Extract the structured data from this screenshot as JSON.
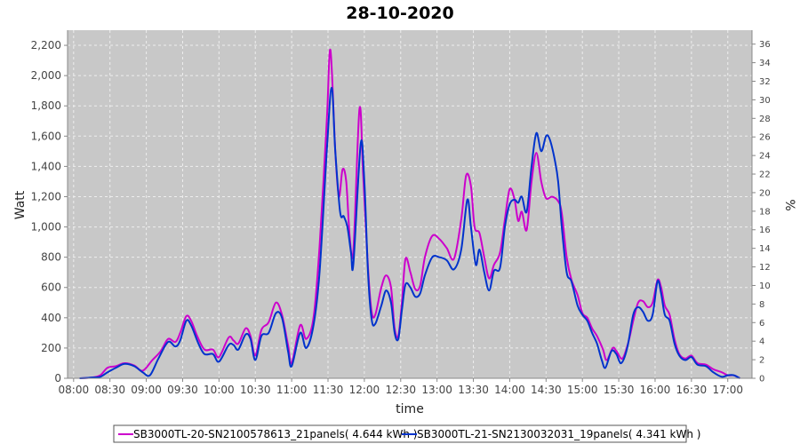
{
  "chart_data": {
    "type": "line",
    "title": "28-10-2020",
    "xlabel": "time",
    "ylabel": "Watt",
    "y2label": "%",
    "ylim": [
      0,
      2300
    ],
    "y2lim": [
      0,
      37.5
    ],
    "xlim": [
      "07:55",
      "17:20"
    ],
    "grid": true,
    "legend_position": "bottom",
    "x_ticks": [
      "08:00",
      "08:30",
      "09:00",
      "09:30",
      "10:00",
      "10:30",
      "11:00",
      "11:30",
      "12:00",
      "12:30",
      "13:00",
      "13:30",
      "14:00",
      "14:30",
      "15:00",
      "15:30",
      "16:00",
      "16:30",
      "17:00"
    ],
    "y_ticks": [
      "0",
      "200",
      "400",
      "600",
      "800",
      "1,000",
      "1,200",
      "1,400",
      "1,600",
      "1,800",
      "2,000",
      "2,200"
    ],
    "y_tick_values": [
      0,
      200,
      400,
      600,
      800,
      1000,
      1200,
      1400,
      1600,
      1800,
      2000,
      2200
    ],
    "y2_ticks": [
      "0",
      "2",
      "4",
      "6",
      "8",
      "10",
      "12",
      "14",
      "16",
      "18",
      "20",
      "22",
      "24",
      "26",
      "28",
      "30",
      "32",
      "34",
      "36"
    ],
    "y2_tick_values": [
      0,
      2,
      4,
      6,
      8,
      10,
      12,
      14,
      16,
      18,
      20,
      22,
      24,
      26,
      28,
      30,
      32,
      34,
      36
    ],
    "colors": {
      "plot_bg": "#c8c8c8",
      "grid": "#eeeeee"
    },
    "series": [
      {
        "name": "SB3000TL-20-SN2100578613_21panels( 4.644 kWh )",
        "color": "#cc00cc",
        "points": [
          [
            "08:05",
            0
          ],
          [
            "08:15",
            5
          ],
          [
            "08:22",
            20
          ],
          [
            "08:28",
            70
          ],
          [
            "08:35",
            80
          ],
          [
            "08:42",
            100
          ],
          [
            "08:50",
            85
          ],
          [
            "08:57",
            50
          ],
          [
            "09:05",
            120
          ],
          [
            "09:12",
            180
          ],
          [
            "09:18",
            260
          ],
          [
            "09:24",
            240
          ],
          [
            "09:28",
            300
          ],
          [
            "09:33",
            410
          ],
          [
            "09:37",
            380
          ],
          [
            "09:42",
            280
          ],
          [
            "09:48",
            190
          ],
          [
            "09:55",
            190
          ],
          [
            "10:00",
            140
          ],
          [
            "10:08",
            270
          ],
          [
            "10:12",
            250
          ],
          [
            "10:16",
            230
          ],
          [
            "10:22",
            330
          ],
          [
            "10:26",
            280
          ],
          [
            "10:30",
            150
          ],
          [
            "10:35",
            320
          ],
          [
            "10:41",
            370
          ],
          [
            "10:47",
            500
          ],
          [
            "10:52",
            420
          ],
          [
            "10:57",
            220
          ],
          [
            "11:00",
            100
          ],
          [
            "11:07",
            350
          ],
          [
            "11:12",
            260
          ],
          [
            "11:18",
            400
          ],
          [
            "11:23",
            870
          ],
          [
            "11:29",
            1700
          ],
          [
            "11:32",
            2170
          ],
          [
            "11:36",
            1500
          ],
          [
            "11:39",
            1200
          ],
          [
            "11:42",
            1380
          ],
          [
            "11:45",
            1300
          ],
          [
            "11:48",
            930
          ],
          [
            "11:51",
            850
          ],
          [
            "11:56",
            1780
          ],
          [
            "11:59",
            1350
          ],
          [
            "12:03",
            730
          ],
          [
            "12:06",
            440
          ],
          [
            "12:09",
            420
          ],
          [
            "12:14",
            600
          ],
          [
            "12:18",
            680
          ],
          [
            "12:22",
            600
          ],
          [
            "12:25",
            330
          ],
          [
            "12:28",
            280
          ],
          [
            "12:31",
            500
          ],
          [
            "12:34",
            790
          ],
          [
            "12:38",
            700
          ],
          [
            "12:42",
            590
          ],
          [
            "12:46",
            610
          ],
          [
            "12:50",
            800
          ],
          [
            "12:56",
            940
          ],
          [
            "13:02",
            920
          ],
          [
            "13:08",
            860
          ],
          [
            "13:14",
            790
          ],
          [
            "13:20",
            1050
          ],
          [
            "13:24",
            1340
          ],
          [
            "13:28",
            1270
          ],
          [
            "13:31",
            1000
          ],
          [
            "13:35",
            960
          ],
          [
            "13:39",
            800
          ],
          [
            "13:43",
            660
          ],
          [
            "13:47",
            750
          ],
          [
            "13:52",
            830
          ],
          [
            "13:56",
            1050
          ],
          [
            "14:00",
            1250
          ],
          [
            "14:04",
            1180
          ],
          [
            "14:07",
            1040
          ],
          [
            "14:10",
            1100
          ],
          [
            "14:14",
            980
          ],
          [
            "14:18",
            1300
          ],
          [
            "14:22",
            1490
          ],
          [
            "14:26",
            1300
          ],
          [
            "14:30",
            1190
          ],
          [
            "14:35",
            1200
          ],
          [
            "14:40",
            1170
          ],
          [
            "14:43",
            1090
          ],
          [
            "14:47",
            800
          ],
          [
            "14:51",
            650
          ],
          [
            "14:56",
            550
          ],
          [
            "15:00",
            430
          ],
          [
            "15:04",
            400
          ],
          [
            "15:08",
            330
          ],
          [
            "15:12",
            280
          ],
          [
            "15:17",
            190
          ],
          [
            "15:20",
            120
          ],
          [
            "15:25",
            200
          ],
          [
            "15:28",
            180
          ],
          [
            "15:33",
            130
          ],
          [
            "15:38",
            240
          ],
          [
            "15:42",
            380
          ],
          [
            "15:46",
            500
          ],
          [
            "15:50",
            510
          ],
          [
            "15:54",
            470
          ],
          [
            "15:58",
            500
          ],
          [
            "16:02",
            650
          ],
          [
            "16:05",
            600
          ],
          [
            "16:08",
            480
          ],
          [
            "16:12",
            420
          ],
          [
            "16:16",
            260
          ],
          [
            "16:20",
            160
          ],
          [
            "16:25",
            130
          ],
          [
            "16:30",
            150
          ],
          [
            "16:35",
            100
          ],
          [
            "16:42",
            90
          ],
          [
            "16:48",
            60
          ],
          [
            "16:55",
            40
          ],
          [
            "17:00",
            20
          ],
          [
            "17:05",
            20
          ],
          [
            "17:10",
            0
          ]
        ]
      },
      {
        "name": "SB3000TL-21-SN2130032031_19panels( 4.341 kWh )",
        "color": "#0033cc",
        "points": [
          [
            "08:05",
            0
          ],
          [
            "08:15",
            5
          ],
          [
            "08:22",
            10
          ],
          [
            "08:28",
            40
          ],
          [
            "08:35",
            70
          ],
          [
            "08:42",
            95
          ],
          [
            "08:50",
            80
          ],
          [
            "08:57",
            40
          ],
          [
            "09:03",
            20
          ],
          [
            "09:10",
            130
          ],
          [
            "09:18",
            240
          ],
          [
            "09:24",
            210
          ],
          [
            "09:28",
            250
          ],
          [
            "09:33",
            380
          ],
          [
            "09:37",
            350
          ],
          [
            "09:43",
            230
          ],
          [
            "09:48",
            160
          ],
          [
            "09:55",
            160
          ],
          [
            "10:00",
            110
          ],
          [
            "10:08",
            220
          ],
          [
            "10:12",
            220
          ],
          [
            "10:16",
            190
          ],
          [
            "10:22",
            290
          ],
          [
            "10:26",
            260
          ],
          [
            "10:30",
            120
          ],
          [
            "10:35",
            280
          ],
          [
            "10:41",
            300
          ],
          [
            "10:47",
            430
          ],
          [
            "10:52",
            400
          ],
          [
            "10:57",
            180
          ],
          [
            "11:00",
            80
          ],
          [
            "11:07",
            300
          ],
          [
            "11:12",
            200
          ],
          [
            "11:18",
            350
          ],
          [
            "11:23",
            700
          ],
          [
            "11:29",
            1500
          ],
          [
            "11:33",
            1920
          ],
          [
            "11:36",
            1500
          ],
          [
            "11:40",
            1100
          ],
          [
            "11:43",
            1070
          ],
          [
            "11:46",
            1000
          ],
          [
            "11:49",
            830
          ],
          [
            "11:51",
            760
          ],
          [
            "11:57",
            1550
          ],
          [
            "12:00",
            1300
          ],
          [
            "12:03",
            700
          ],
          [
            "12:06",
            390
          ],
          [
            "12:09",
            360
          ],
          [
            "12:14",
            480
          ],
          [
            "12:18",
            580
          ],
          [
            "12:22",
            500
          ],
          [
            "12:25",
            300
          ],
          [
            "12:28",
            260
          ],
          [
            "12:31",
            450
          ],
          [
            "12:34",
            620
          ],
          [
            "12:38",
            600
          ],
          [
            "12:42",
            540
          ],
          [
            "12:46",
            560
          ],
          [
            "12:50",
            680
          ],
          [
            "12:56",
            800
          ],
          [
            "13:02",
            800
          ],
          [
            "13:08",
            780
          ],
          [
            "13:14",
            720
          ],
          [
            "13:20",
            850
          ],
          [
            "13:25",
            1180
          ],
          [
            "13:28",
            1000
          ],
          [
            "13:32",
            750
          ],
          [
            "13:35",
            850
          ],
          [
            "13:39",
            700
          ],
          [
            "13:43",
            580
          ],
          [
            "13:47",
            710
          ],
          [
            "13:52",
            730
          ],
          [
            "13:56",
            1000
          ],
          [
            "14:00",
            1150
          ],
          [
            "14:04",
            1180
          ],
          [
            "14:07",
            1160
          ],
          [
            "14:10",
            1200
          ],
          [
            "14:14",
            1100
          ],
          [
            "14:18",
            1400
          ],
          [
            "14:22",
            1620
          ],
          [
            "14:26",
            1500
          ],
          [
            "14:30",
            1600
          ],
          [
            "14:33",
            1580
          ],
          [
            "14:37",
            1450
          ],
          [
            "14:40",
            1300
          ],
          [
            "14:43",
            1000
          ],
          [
            "14:47",
            700
          ],
          [
            "14:51",
            640
          ],
          [
            "14:56",
            480
          ],
          [
            "15:00",
            420
          ],
          [
            "15:04",
            380
          ],
          [
            "15:08",
            300
          ],
          [
            "15:12",
            230
          ],
          [
            "15:16",
            120
          ],
          [
            "15:19",
            70
          ],
          [
            "15:24",
            180
          ],
          [
            "15:28",
            160
          ],
          [
            "15:32",
            100
          ],
          [
            "15:37",
            200
          ],
          [
            "15:42",
            420
          ],
          [
            "15:46",
            470
          ],
          [
            "15:50",
            440
          ],
          [
            "15:54",
            380
          ],
          [
            "15:58",
            420
          ],
          [
            "16:02",
            640
          ],
          [
            "16:05",
            560
          ],
          [
            "16:08",
            420
          ],
          [
            "16:12",
            380
          ],
          [
            "16:16",
            230
          ],
          [
            "16:20",
            150
          ],
          [
            "16:25",
            120
          ],
          [
            "16:30",
            140
          ],
          [
            "16:35",
            90
          ],
          [
            "16:42",
            80
          ],
          [
            "16:48",
            40
          ],
          [
            "16:55",
            10
          ],
          [
            "17:00",
            20
          ],
          [
            "17:05",
            20
          ],
          [
            "17:10",
            0
          ]
        ]
      }
    ]
  }
}
